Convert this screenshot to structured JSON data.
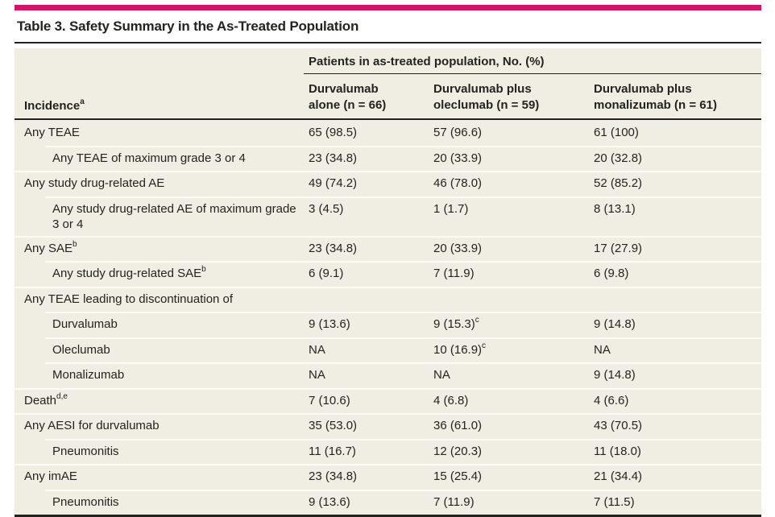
{
  "colors": {
    "accent": "#d2156b",
    "beige": "#f0eee3",
    "sep": "#fbfaf3",
    "rule": "#23231f",
    "text": "#232320",
    "page-bg": "#ffffff"
  },
  "table": {
    "title": "Table 3. Safety Summary in the As-Treated Population",
    "spanning_header": "Patients in as-treated population, No. (%)",
    "stub_header": {
      "text": "Incidence",
      "sup": "a"
    },
    "columns": [
      {
        "line1": "Durvalumab",
        "line2": "alone (n = 66)"
      },
      {
        "line1": "Durvalumab plus",
        "line2": "oleclumab (n = 59)"
      },
      {
        "line1": "Durvalumab plus",
        "line2": "monalizumab (n = 61)"
      }
    ],
    "rows": [
      {
        "label": {
          "text": "Any TEAE",
          "sup": ""
        },
        "indent": false,
        "values": [
          {
            "text": "65 (98.5)",
            "sup": ""
          },
          {
            "text": "57 (96.6)",
            "sup": ""
          },
          {
            "text": "61 (100)",
            "sup": ""
          }
        ]
      },
      {
        "label": {
          "text": "Any TEAE of maximum grade 3 or 4",
          "sup": ""
        },
        "indent": true,
        "values": [
          {
            "text": "23 (34.8)",
            "sup": ""
          },
          {
            "text": "20 (33.9)",
            "sup": ""
          },
          {
            "text": "20 (32.8)",
            "sup": ""
          }
        ]
      },
      {
        "label": {
          "text": "Any study drug-related AE",
          "sup": ""
        },
        "indent": false,
        "values": [
          {
            "text": "49 (74.2)",
            "sup": ""
          },
          {
            "text": "46 (78.0)",
            "sup": ""
          },
          {
            "text": "52 (85.2)",
            "sup": ""
          }
        ]
      },
      {
        "label": {
          "text": "Any study drug-related AE of maximum grade 3 or 4",
          "sup": ""
        },
        "indent": true,
        "values": [
          {
            "text": "3 (4.5)",
            "sup": ""
          },
          {
            "text": "1 (1.7)",
            "sup": ""
          },
          {
            "text": "8 (13.1)",
            "sup": ""
          }
        ]
      },
      {
        "label": {
          "text": "Any SAE",
          "sup": "b"
        },
        "indent": false,
        "values": [
          {
            "text": "23 (34.8)",
            "sup": ""
          },
          {
            "text": "20 (33.9)",
            "sup": ""
          },
          {
            "text": "17 (27.9)",
            "sup": ""
          }
        ]
      },
      {
        "label": {
          "text": "Any study drug-related SAE",
          "sup": "b"
        },
        "indent": true,
        "values": [
          {
            "text": "6 (9.1)",
            "sup": ""
          },
          {
            "text": "7 (11.9)",
            "sup": ""
          },
          {
            "text": "6 (9.8)",
            "sup": ""
          }
        ]
      },
      {
        "label": {
          "text": "Any TEAE leading to discontinuation of",
          "sup": ""
        },
        "indent": false,
        "values": [
          {
            "text": "",
            "sup": ""
          },
          {
            "text": "",
            "sup": ""
          },
          {
            "text": "",
            "sup": ""
          }
        ]
      },
      {
        "label": {
          "text": "Durvalumab",
          "sup": ""
        },
        "indent": true,
        "values": [
          {
            "text": "9 (13.6)",
            "sup": ""
          },
          {
            "text": "9 (15.3)",
            "sup": "c"
          },
          {
            "text": "9 (14.8)",
            "sup": ""
          }
        ]
      },
      {
        "label": {
          "text": "Oleclumab",
          "sup": ""
        },
        "indent": true,
        "values": [
          {
            "text": "NA",
            "sup": ""
          },
          {
            "text": "10 (16.9)",
            "sup": "c"
          },
          {
            "text": "NA",
            "sup": ""
          }
        ]
      },
      {
        "label": {
          "text": "Monalizumab",
          "sup": ""
        },
        "indent": true,
        "values": [
          {
            "text": "NA",
            "sup": ""
          },
          {
            "text": "NA",
            "sup": ""
          },
          {
            "text": "9 (14.8)",
            "sup": ""
          }
        ]
      },
      {
        "label": {
          "text": "Death",
          "sup": "d,e"
        },
        "indent": false,
        "values": [
          {
            "text": "7 (10.6)",
            "sup": ""
          },
          {
            "text": "4 (6.8)",
            "sup": ""
          },
          {
            "text": "4 (6.6)",
            "sup": ""
          }
        ]
      },
      {
        "label": {
          "text": "Any AESI for durvalumab",
          "sup": ""
        },
        "indent": false,
        "values": [
          {
            "text": "35 (53.0)",
            "sup": ""
          },
          {
            "text": "36 (61.0)",
            "sup": ""
          },
          {
            "text": "43 (70.5)",
            "sup": ""
          }
        ]
      },
      {
        "label": {
          "text": "Pneumonitis",
          "sup": ""
        },
        "indent": true,
        "values": [
          {
            "text": "11 (16.7)",
            "sup": ""
          },
          {
            "text": "12 (20.3)",
            "sup": ""
          },
          {
            "text": "11 (18.0)",
            "sup": ""
          }
        ]
      },
      {
        "label": {
          "text": "Any imAE",
          "sup": ""
        },
        "indent": false,
        "values": [
          {
            "text": "23 (34.8)",
            "sup": ""
          },
          {
            "text": "15 (25.4)",
            "sup": ""
          },
          {
            "text": "21 (34.4)",
            "sup": ""
          }
        ]
      },
      {
        "label": {
          "text": "Pneumonitis",
          "sup": ""
        },
        "indent": true,
        "values": [
          {
            "text": "9 (13.6)",
            "sup": ""
          },
          {
            "text": "7 (11.9)",
            "sup": ""
          },
          {
            "text": "7 (11.5)",
            "sup": ""
          }
        ]
      }
    ]
  }
}
